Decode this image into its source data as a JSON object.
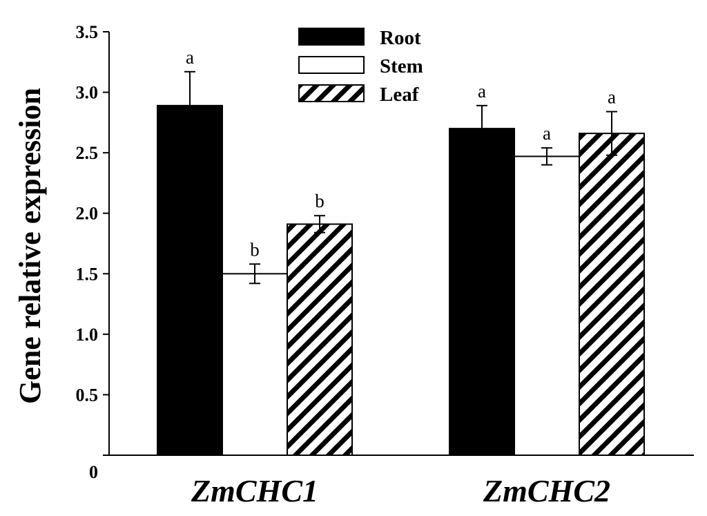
{
  "chart_data": {
    "type": "bar",
    "ylabel": "Gene relative expression",
    "categories": [
      "ZmCHC1",
      "ZmCHC2"
    ],
    "ylim": [
      0,
      3.5
    ],
    "yticks": [
      0,
      0.5,
      1.0,
      1.5,
      2.0,
      2.5,
      3.0,
      3.5
    ],
    "ytick_labels": [
      "0",
      "0.5",
      "1.0",
      "1.5",
      "2.0",
      "2.5",
      "3.0",
      "3.5"
    ],
    "legend_position": "top-center",
    "grid": false,
    "series": [
      {
        "name": "Root",
        "fill": "solid",
        "color": "#000000",
        "values": [
          2.89,
          2.7
        ],
        "errors": [
          0.28,
          0.19
        ],
        "significance": [
          "a",
          "a"
        ]
      },
      {
        "name": "Stem",
        "fill": "open",
        "color": "#ffffff",
        "values": [
          1.5,
          2.47
        ],
        "errors": [
          0.08,
          0.07
        ],
        "significance": [
          "b",
          "a"
        ]
      },
      {
        "name": "Leaf",
        "fill": "hatched",
        "color": "#000000",
        "values": [
          1.91,
          2.66
        ],
        "errors": [
          0.07,
          0.18
        ],
        "significance": [
          "b",
          "a"
        ]
      }
    ]
  }
}
